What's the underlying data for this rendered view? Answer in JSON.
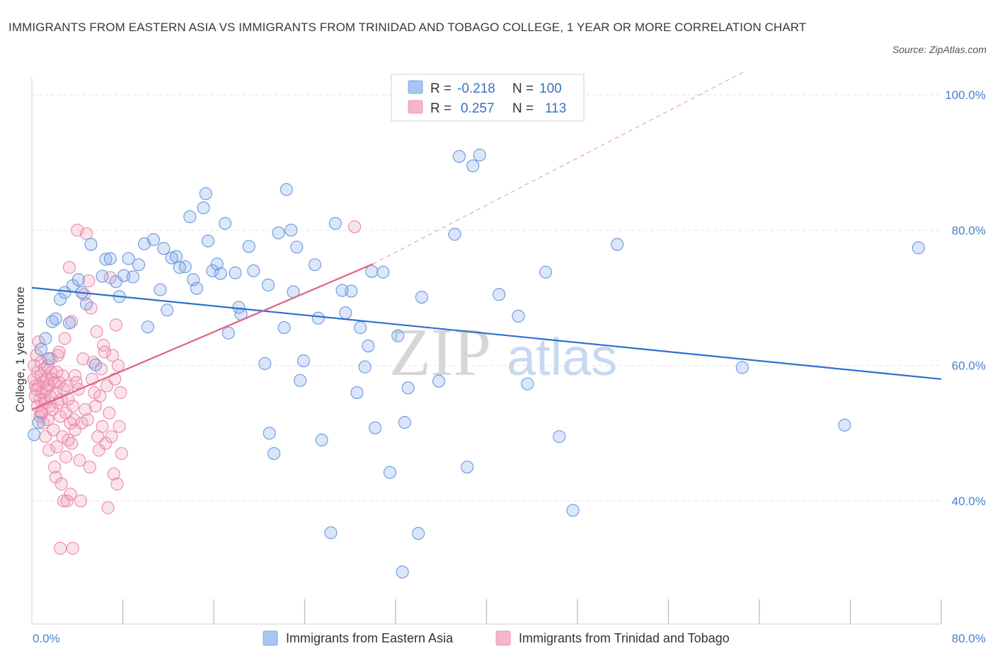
{
  "title": "IMMIGRANTS FROM EASTERN ASIA VS IMMIGRANTS FROM TRINIDAD AND TOBAGO COLLEGE, 1 YEAR OR MORE CORRELATION CHART",
  "source": "Source: ZipAtlas.com",
  "watermark": {
    "zip": "ZIP",
    "atlas": "atlas"
  },
  "stats": [
    {
      "r_label": "R =",
      "r_value": "-0.218",
      "n_label": "N =",
      "n_value": "100",
      "color": "#a9c6f0"
    },
    {
      "r_label": "R =",
      "r_value": "0.257",
      "n_label": "N =",
      "n_value": "113",
      "color": "#f5b6c8"
    }
  ],
  "chart_data": {
    "type": "scatter",
    "ylabel": "College, 1 year or more",
    "xlim": [
      0,
      80
    ],
    "ylim": [
      20,
      100
    ],
    "x_tick_labels": [
      "0.0%",
      "80.0%"
    ],
    "y_tick_labels": [
      "100.0%",
      "80.0%",
      "60.0%",
      "40.0%"
    ],
    "y_ticks": [
      100,
      80,
      60,
      40
    ],
    "grid": true,
    "legend_position": "bottom-center",
    "series": [
      {
        "name": "Immigrants from Eastern Asia",
        "color": "#7aa7e8",
        "line_color": "#2e6fcf",
        "trend": [
          [
            0,
            71.5
          ],
          [
            80,
            58.0
          ]
        ],
        "points": [
          [
            0.2,
            49.8
          ],
          [
            0.6,
            51.6
          ],
          [
            0.8,
            62.4
          ],
          [
            1.2,
            64.0
          ],
          [
            1.5,
            61.0
          ],
          [
            1.8,
            66.5
          ],
          [
            2.1,
            66.9
          ],
          [
            2.5,
            69.8
          ],
          [
            2.9,
            70.8
          ],
          [
            3.3,
            66.3
          ],
          [
            3.6,
            71.8
          ],
          [
            4.1,
            72.7
          ],
          [
            4.4,
            70.8
          ],
          [
            4.8,
            69.1
          ],
          [
            5.2,
            77.9
          ],
          [
            5.6,
            60.1
          ],
          [
            6.2,
            73.2
          ],
          [
            6.5,
            75.7
          ],
          [
            6.9,
            75.8
          ],
          [
            7.4,
            72.4
          ],
          [
            7.7,
            70.2
          ],
          [
            8.1,
            73.3
          ],
          [
            8.5,
            75.8
          ],
          [
            8.9,
            73.1
          ],
          [
            9.4,
            74.9
          ],
          [
            9.9,
            78.0
          ],
          [
            10.2,
            65.7
          ],
          [
            10.7,
            78.6
          ],
          [
            11.3,
            71.2
          ],
          [
            11.6,
            77.3
          ],
          [
            11.9,
            68.2
          ],
          [
            12.3,
            75.9
          ],
          [
            12.7,
            76.1
          ],
          [
            13.0,
            74.5
          ],
          [
            13.5,
            74.6
          ],
          [
            13.9,
            82.0
          ],
          [
            14.2,
            72.7
          ],
          [
            14.5,
            71.4
          ],
          [
            15.1,
            83.3
          ],
          [
            15.3,
            85.4
          ],
          [
            15.5,
            78.4
          ],
          [
            15.9,
            74.0
          ],
          [
            16.3,
            75.0
          ],
          [
            16.6,
            73.6
          ],
          [
            17.0,
            81.0
          ],
          [
            17.3,
            64.8
          ],
          [
            17.9,
            73.7
          ],
          [
            18.2,
            68.6
          ],
          [
            18.4,
            67.6
          ],
          [
            19.1,
            77.6
          ],
          [
            19.5,
            74.0
          ],
          [
            20.5,
            60.3
          ],
          [
            20.8,
            71.9
          ],
          [
            20.9,
            50.0
          ],
          [
            21.3,
            47.0
          ],
          [
            21.7,
            79.6
          ],
          [
            22.2,
            65.6
          ],
          [
            22.4,
            86.0
          ],
          [
            22.8,
            80.0
          ],
          [
            23.0,
            70.9
          ],
          [
            23.3,
            77.5
          ],
          [
            23.6,
            57.8
          ],
          [
            23.9,
            60.7
          ],
          [
            24.9,
            74.9
          ],
          [
            25.2,
            67.0
          ],
          [
            25.5,
            49.0
          ],
          [
            26.3,
            35.3
          ],
          [
            26.7,
            81.0
          ],
          [
            27.3,
            71.1
          ],
          [
            27.6,
            67.8
          ],
          [
            28.1,
            71.0
          ],
          [
            28.6,
            56.0
          ],
          [
            28.9,
            65.6
          ],
          [
            29.3,
            59.8
          ],
          [
            29.6,
            62.9
          ],
          [
            29.9,
            73.9
          ],
          [
            30.2,
            50.8
          ],
          [
            30.9,
            73.8
          ],
          [
            31.5,
            44.2
          ],
          [
            32.2,
            64.4
          ],
          [
            32.6,
            29.5
          ],
          [
            32.8,
            51.6
          ],
          [
            33.1,
            56.7
          ],
          [
            34.0,
            35.2
          ],
          [
            34.3,
            70.1
          ],
          [
            35.8,
            57.7
          ],
          [
            37.2,
            79.4
          ],
          [
            37.6,
            90.9
          ],
          [
            38.3,
            45.0
          ],
          [
            38.8,
            89.5
          ],
          [
            39.4,
            91.1
          ],
          [
            41.1,
            70.5
          ],
          [
            42.8,
            67.3
          ],
          [
            43.6,
            57.3
          ],
          [
            45.2,
            73.8
          ],
          [
            46.4,
            49.5
          ],
          [
            47.6,
            38.6
          ],
          [
            51.5,
            77.9
          ],
          [
            62.5,
            59.7
          ],
          [
            71.5,
            51.2
          ],
          [
            78.0,
            77.4
          ]
        ]
      },
      {
        "name": "Immigrants from Trinidad and Tobago",
        "color": "#f29ab5",
        "line_color": "#e0608a",
        "trend": [
          [
            0,
            53.5
          ],
          [
            30,
            75.0
          ]
        ],
        "trend_extension": [
          [
            30,
            75.0
          ],
          [
            80,
            118.5
          ]
        ],
        "points": [
          [
            0.2,
            60.0
          ],
          [
            0.2,
            58.0
          ],
          [
            0.3,
            57.0
          ],
          [
            0.3,
            55.5
          ],
          [
            0.4,
            61.5
          ],
          [
            0.4,
            56.5
          ],
          [
            0.5,
            54.0
          ],
          [
            0.5,
            59.0
          ],
          [
            0.6,
            63.5
          ],
          [
            0.6,
            57.0
          ],
          [
            0.7,
            55.0
          ],
          [
            0.7,
            52.5
          ],
          [
            0.8,
            60.5
          ],
          [
            0.8,
            58.5
          ],
          [
            0.9,
            56.0
          ],
          [
            0.9,
            53.0
          ],
          [
            1.0,
            51.5
          ],
          [
            1.0,
            57.5
          ],
          [
            1.1,
            59.5
          ],
          [
            1.1,
            55.0
          ],
          [
            1.2,
            54.5
          ],
          [
            1.2,
            49.5
          ],
          [
            1.3,
            58.0
          ],
          [
            1.3,
            56.5
          ],
          [
            1.4,
            60.0
          ],
          [
            1.4,
            52.0
          ],
          [
            1.5,
            57.0
          ],
          [
            1.5,
            47.5
          ],
          [
            1.6,
            55.5
          ],
          [
            1.6,
            54.0
          ],
          [
            1.7,
            61.0
          ],
          [
            1.7,
            59.0
          ],
          [
            1.8,
            58.0
          ],
          [
            1.8,
            53.5
          ],
          [
            1.9,
            50.5
          ],
          [
            2.0,
            57.5
          ],
          [
            2.0,
            45.0
          ],
          [
            2.1,
            56.0
          ],
          [
            2.1,
            43.5
          ],
          [
            2.2,
            59.0
          ],
          [
            2.2,
            48.0
          ],
          [
            2.3,
            54.5
          ],
          [
            2.3,
            61.5
          ],
          [
            2.4,
            57.5
          ],
          [
            2.5,
            33.0
          ],
          [
            2.5,
            52.5
          ],
          [
            2.6,
            42.5
          ],
          [
            2.6,
            55.0
          ],
          [
            2.7,
            58.5
          ],
          [
            2.7,
            49.5
          ],
          [
            2.8,
            40.0
          ],
          [
            2.8,
            56.5
          ],
          [
            2.9,
            64.0
          ],
          [
            3.0,
            53.0
          ],
          [
            3.0,
            46.5
          ],
          [
            3.1,
            40.0
          ],
          [
            3.1,
            57.0
          ],
          [
            3.2,
            55.0
          ],
          [
            3.2,
            49.0
          ],
          [
            3.3,
            74.5
          ],
          [
            3.4,
            51.5
          ],
          [
            3.4,
            41.0
          ],
          [
            3.5,
            66.5
          ],
          [
            3.5,
            48.5
          ],
          [
            3.6,
            33.0
          ],
          [
            3.6,
            54.0
          ],
          [
            3.7,
            52.0
          ],
          [
            3.8,
            58.5
          ],
          [
            3.8,
            50.5
          ],
          [
            3.9,
            57.5
          ],
          [
            4.0,
            80.0
          ],
          [
            4.1,
            56.5
          ],
          [
            4.2,
            46.0
          ],
          [
            4.3,
            40.0
          ],
          [
            4.4,
            51.5
          ],
          [
            4.5,
            61.0
          ],
          [
            4.6,
            70.5
          ],
          [
            4.7,
            53.5
          ],
          [
            4.8,
            79.5
          ],
          [
            4.9,
            52.0
          ],
          [
            5.0,
            72.5
          ],
          [
            5.1,
            45.0
          ],
          [
            5.2,
            68.5
          ],
          [
            5.3,
            58.0
          ],
          [
            5.4,
            60.5
          ],
          [
            5.5,
            56.0
          ],
          [
            5.6,
            54.0
          ],
          [
            5.7,
            65.0
          ],
          [
            5.8,
            49.5
          ],
          [
            5.9,
            47.5
          ],
          [
            6.0,
            55.5
          ],
          [
            6.1,
            59.5
          ],
          [
            6.2,
            51.0
          ],
          [
            6.3,
            63.0
          ],
          [
            6.4,
            62.0
          ],
          [
            6.5,
            48.5
          ],
          [
            6.6,
            57.0
          ],
          [
            6.7,
            39.0
          ],
          [
            6.8,
            53.0
          ],
          [
            6.9,
            73.0
          ],
          [
            7.0,
            49.5
          ],
          [
            7.1,
            61.5
          ],
          [
            7.2,
            44.0
          ],
          [
            7.3,
            58.0
          ],
          [
            7.4,
            66.0
          ],
          [
            7.5,
            42.5
          ],
          [
            7.6,
            60.0
          ],
          [
            7.7,
            51.0
          ],
          [
            7.8,
            56.0
          ],
          [
            7.9,
            47.0
          ],
          [
            28.4,
            80.5
          ],
          [
            0.8,
            53.0
          ],
          [
            2.4,
            62.0
          ]
        ]
      }
    ]
  },
  "legend": [
    {
      "label": "Immigrants from Eastern Asia",
      "color": "#a9c6f0"
    },
    {
      "label": "Immigrants from Trinidad and Tobago",
      "color": "#f5b6c8"
    }
  ]
}
